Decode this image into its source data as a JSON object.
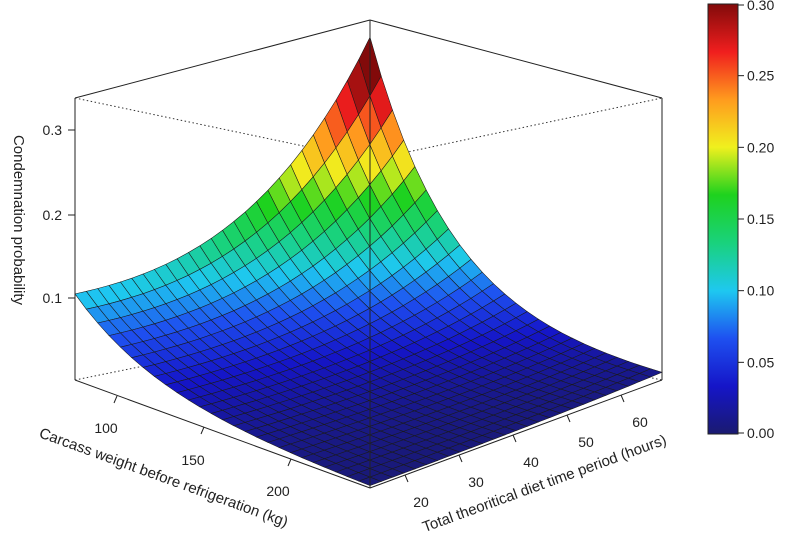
{
  "chart_data": {
    "type": "surface",
    "title": "",
    "zlabel": "Condemnation probability",
    "xlabel": "Carcass weight before refrigeration (kg)",
    "ylabel": "Total theoritical diet time period (hours)",
    "x_ticks": [
      "100",
      "150",
      "200"
    ],
    "y_ticks": [
      "20",
      "30",
      "40",
      "50",
      "60"
    ],
    "z_ticks": [
      "0.1",
      "0.2",
      "0.3"
    ],
    "xlim": [
      75,
      245
    ],
    "ylim": [
      14,
      68
    ],
    "zlim": [
      0,
      0.35
    ],
    "surface_corners": [
      {
        "x": 75,
        "y": 68,
        "z": 0.105
      },
      {
        "x": 75,
        "y": 14,
        "z": 0.345
      },
      {
        "x": 245,
        "y": 14,
        "z": 0.0
      },
      {
        "x": 245,
        "y": 68,
        "z": 0.0
      }
    ],
    "colorbar": {
      "range": [
        0.0,
        0.3
      ],
      "ticks": [
        "0.00",
        "0.05",
        "0.10",
        "0.15",
        "0.20",
        "0.25",
        "0.30"
      ],
      "colors": [
        "#1a1a70",
        "#1515c8",
        "#1e50f0",
        "#1ec8f0",
        "#19d27d",
        "#1ed21e",
        "#f0f01e",
        "#ff9b1e",
        "#f01e1e",
        "#820a0a"
      ]
    }
  }
}
